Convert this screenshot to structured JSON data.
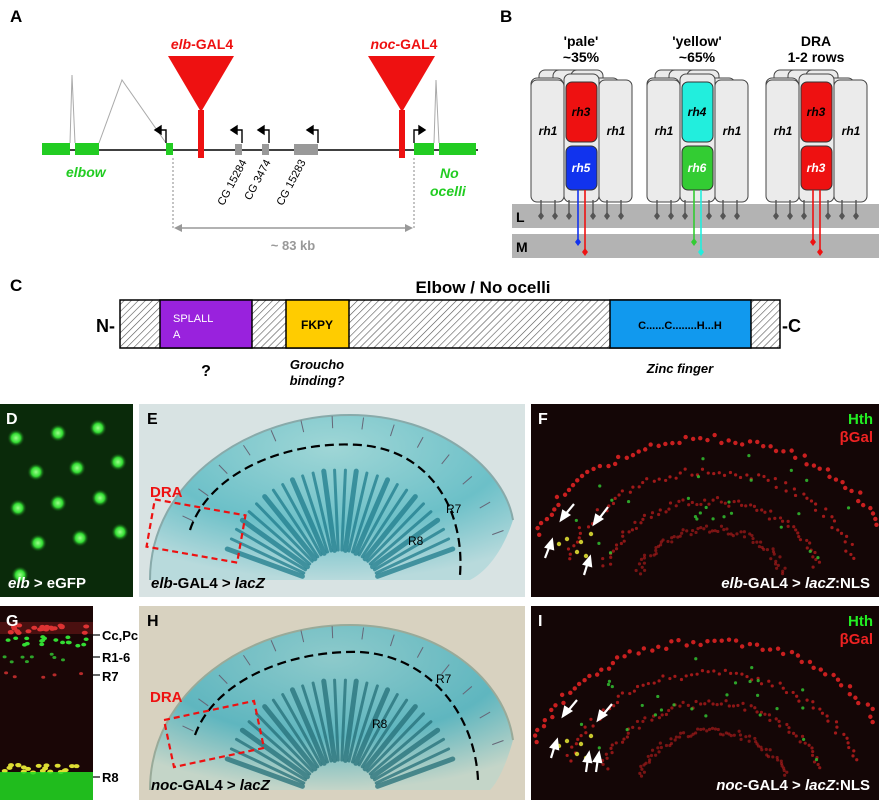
{
  "panel_letters": [
    "A",
    "B",
    "C",
    "D",
    "E",
    "F",
    "G",
    "H",
    "I"
  ],
  "panel_a": {
    "elb_gal4_prefix": "elb",
    "elb_gal4_suffix": "-GAL4",
    "noc_gal4_prefix": "noc",
    "noc_gal4_suffix": "-GAL4",
    "gene_elbow": "elbow",
    "gene_no_ocelli_1": "No",
    "gene_no_ocelli_2": "ocelli",
    "cg_genes": [
      "CG 15284",
      "CG 3474",
      "CG 15283"
    ],
    "distance": "~ 83 kb",
    "colors": {
      "gene_green": "#22cc22",
      "gal4_red": "#ee1111",
      "cg_gray": "#999999"
    }
  },
  "panel_b": {
    "groups": [
      {
        "title": "'pale'",
        "subtitle": "~35%",
        "top": "rh3",
        "bottom": "rh5",
        "top_color": "#ee1111",
        "bottom_color": "#1133ee"
      },
      {
        "title": "'yellow'",
        "subtitle": "~65%",
        "top": "rh4",
        "bottom": "rh6",
        "top_color": "#22eedd",
        "bottom_color": "#33cc33"
      },
      {
        "title": "DRA",
        "subtitle": "1-2 rows",
        "top": "rh3",
        "bottom": "rh3",
        "top_color": "#ee1111",
        "bottom_color": "#ee1111"
      }
    ],
    "outer_label": "rh1",
    "layer_l": "L",
    "layer_m": "M"
  },
  "panel_c": {
    "title": "Elbow / No ocelli",
    "n_term": "N-",
    "c_term": "-C",
    "domain1_line1": "SPLALL",
    "domain1_line2": "A",
    "domain1_note": "?",
    "domain2": "FKPY",
    "domain2_note_1": "Groucho",
    "domain2_note_2": "binding?",
    "domain3": "C......C........H...H",
    "domain3_note": "Zinc finger",
    "colors": {
      "d1": "#9922dd",
      "d2": "#ffcc00",
      "d3": "#1199ee"
    }
  },
  "panel_d": {
    "caption_prefix": "elb",
    "caption_suffix": " > eGFP"
  },
  "panel_e": {
    "dra": "DRA",
    "r7": "R7",
    "r8": "R8",
    "caption_prefix": "elb",
    "caption_mid": "-GAL4 > ",
    "caption_suffix": "lacZ"
  },
  "panel_f": {
    "legend_1": "Hth",
    "legend_2": "βGal",
    "caption_prefix": "elb",
    "caption_mid": "-GAL4 > ",
    "caption_ital": "lacZ",
    "caption_suffix": ":NLS"
  },
  "panel_g": {
    "labels": [
      "Cc,Pc",
      "R1-6",
      "R7",
      "R8"
    ]
  },
  "panel_h": {
    "dra": "DRA",
    "r7": "R7",
    "r8": "R8",
    "caption_prefix": "noc",
    "caption_mid": "-GAL4 > ",
    "caption_suffix": "lacZ"
  },
  "panel_i": {
    "legend_1": "Hth",
    "legend_2": "βGal",
    "caption_prefix": "noc",
    "caption_mid": "-GAL4 > ",
    "caption_ital": "lacZ",
    "caption_suffix": ":NLS"
  }
}
